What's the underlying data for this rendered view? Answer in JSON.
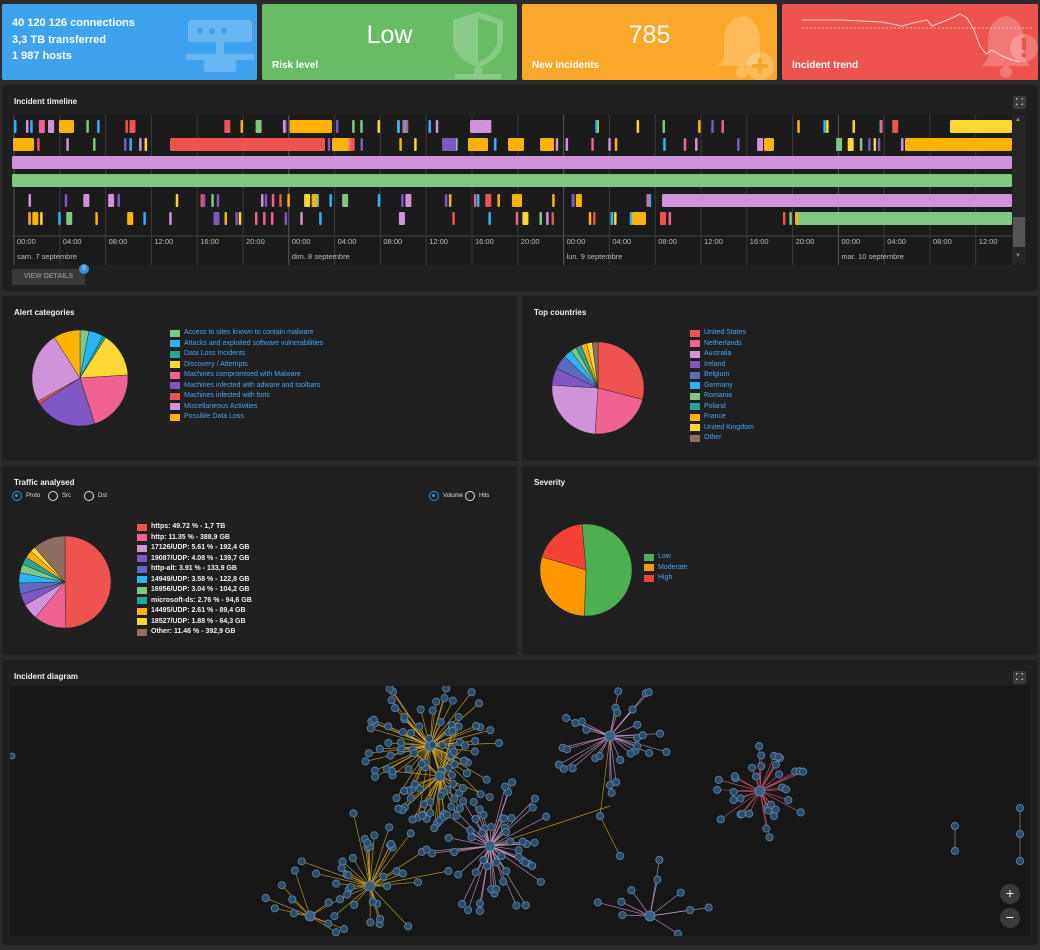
{
  "tiles": {
    "stats": {
      "line1": "40 120 126 connections",
      "line2": "3,3 TB transferred",
      "line3": "1 987 hosts",
      "icon": "network-icon",
      "color": "#3ea2ef"
    },
    "risk": {
      "value": "Low",
      "caption": "Risk level",
      "icon": "shield-icon",
      "color": "#67bc65"
    },
    "incidents": {
      "value": "785",
      "caption": "New incidents",
      "icon": "bell-plus-icon",
      "color": "#fba72a"
    },
    "trend": {
      "caption": "Incident trend",
      "icon": "bell-alert-icon",
      "color": "#ef5350"
    }
  },
  "timeline": {
    "title": "Incident timeline",
    "time_ticks": [
      "00:00",
      "04:00",
      "08:00",
      "12:00",
      "16:00",
      "20:00",
      "00:00",
      "04:00",
      "08:00",
      "12:00",
      "16:00",
      "20:00",
      "00:00",
      "04:00",
      "08:00",
      "12:00",
      "16:00",
      "20:00",
      "00:00",
      "04:00",
      "08:00",
      "12:00"
    ],
    "days": [
      "sam. 7 septembre",
      "dim. 8 septembre",
      "lun. 9 septembre",
      "mar. 10 septembre"
    ],
    "view_details_label": "VIEW DETAILS",
    "view_details_badge": "0"
  },
  "alert_categories": {
    "title": "Alert categories",
    "chart_data": {
      "type": "pie",
      "slices": [
        {
          "label": "Access to sites known to contain malware",
          "value": 3,
          "color": "#81c784"
        },
        {
          "label": "Attacks and exploited software vulnerabilities",
          "value": 5,
          "color": "#29b6f6"
        },
        {
          "label": "Data Loss Incidents",
          "value": 1,
          "color": "#26a69a"
        },
        {
          "label": "Discovery / Attempts",
          "value": 15,
          "color": "#fdd835"
        },
        {
          "label": "Machines compromised with Malware",
          "value": 21,
          "color": "#f06292"
        },
        {
          "label": "Machines infected with adware and toolbars",
          "value": 21,
          "color": "#7e57c2"
        },
        {
          "label": "Machines infected with bots",
          "value": 1,
          "color": "#ef5350"
        },
        {
          "label": "Miscellaneous Activities",
          "value": 24,
          "color": "#ce93d8"
        },
        {
          "label": "Possible Data Loss",
          "value": 9,
          "color": "#ffb300"
        }
      ]
    }
  },
  "top_countries": {
    "title": "Top countries",
    "chart_data": {
      "type": "pie",
      "slices": [
        {
          "label": "United States",
          "value": 29,
          "color": "#ef5350"
        },
        {
          "label": "Netherlands",
          "value": 22,
          "color": "#f06292"
        },
        {
          "label": "Australia",
          "value": 25,
          "color": "#ce93d8"
        },
        {
          "label": "Ireland",
          "value": 6,
          "color": "#7e57c2"
        },
        {
          "label": "Belgium",
          "value": 5,
          "color": "#5c6bc0"
        },
        {
          "label": "Germany",
          "value": 3,
          "color": "#29b6f6"
        },
        {
          "label": "Romania",
          "value": 2,
          "color": "#81c784"
        },
        {
          "label": "Poland",
          "value": 2,
          "color": "#26a69a"
        },
        {
          "label": "France",
          "value": 2,
          "color": "#ffb300"
        },
        {
          "label": "United Kingdom",
          "value": 2,
          "color": "#fdd835"
        },
        {
          "label": "Other",
          "value": 2,
          "color": "#8d6e63"
        }
      ]
    }
  },
  "traffic": {
    "title": "Traffic analysed",
    "radios_left": [
      {
        "label": "Proto",
        "selected": true
      },
      {
        "label": "Src",
        "selected": false
      },
      {
        "label": "Dst",
        "selected": false
      }
    ],
    "radios_right": [
      {
        "label": "Volume",
        "selected": true
      },
      {
        "label": "Hits",
        "selected": false
      }
    ],
    "chart_data": {
      "type": "pie",
      "slices": [
        {
          "label": "https: 49.72 % - 1,7 TB",
          "value": 49.72,
          "color": "#ef5350"
        },
        {
          "label": "http: 11.35 % - 388,9 GB",
          "value": 11.35,
          "color": "#f06292"
        },
        {
          "label": "17126/UDP: 5.61 % - 192,4 GB",
          "value": 5.61,
          "color": "#ce93d8"
        },
        {
          "label": "19087/UDP: 4.08 % - 139,7 GB",
          "value": 4.08,
          "color": "#7e57c2"
        },
        {
          "label": "http-alt: 3.91 % - 133,9 GB",
          "value": 3.91,
          "color": "#5c6bc0"
        },
        {
          "label": "14949/UDP: 3.58 % - 122,8 GB",
          "value": 3.58,
          "color": "#29b6f6"
        },
        {
          "label": "16956/UDP: 3.04 % - 104,2 GB",
          "value": 3.04,
          "color": "#81c784"
        },
        {
          "label": "microsoft-ds: 2.76 % - 94,6 GB",
          "value": 2.76,
          "color": "#26a69a"
        },
        {
          "label": "14495/UDP: 2.61 % - 89,4 GB",
          "value": 2.61,
          "color": "#ffb300"
        },
        {
          "label": "18527/UDP: 1.88 % - 64,3 GB",
          "value": 1.88,
          "color": "#fdd835"
        },
        {
          "label": "Other: 11.46 % - 392,9 GB",
          "value": 11.46,
          "color": "#8d6e63"
        }
      ]
    }
  },
  "severity": {
    "title": "Severity",
    "chart_data": {
      "type": "pie",
      "slices": [
        {
          "label": "Low",
          "value": 52,
          "color": "#4caf50"
        },
        {
          "label": "Moderate",
          "value": 29,
          "color": "#ff9800"
        },
        {
          "label": "High",
          "value": 19,
          "color": "#f44336"
        }
      ]
    }
  },
  "diagram": {
    "title": "Incident diagram",
    "zoom_in_label": "+",
    "zoom_out_label": "−"
  }
}
